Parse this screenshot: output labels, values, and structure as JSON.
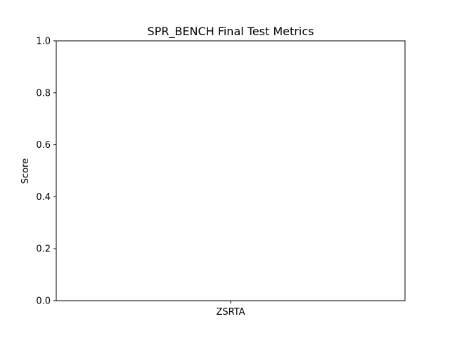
{
  "chart_data": {
    "type": "bar",
    "title": "SPR_BENCH Final Test Metrics",
    "xlabel": "",
    "ylabel": "Score",
    "categories": [
      "ZSRTA"
    ],
    "values": [
      null
    ],
    "ylim": [
      0.0,
      1.0
    ],
    "yticks": [
      "0.0",
      "0.2",
      "0.4",
      "0.6",
      "0.8",
      "1.0"
    ],
    "grid": false,
    "legend": "none"
  }
}
